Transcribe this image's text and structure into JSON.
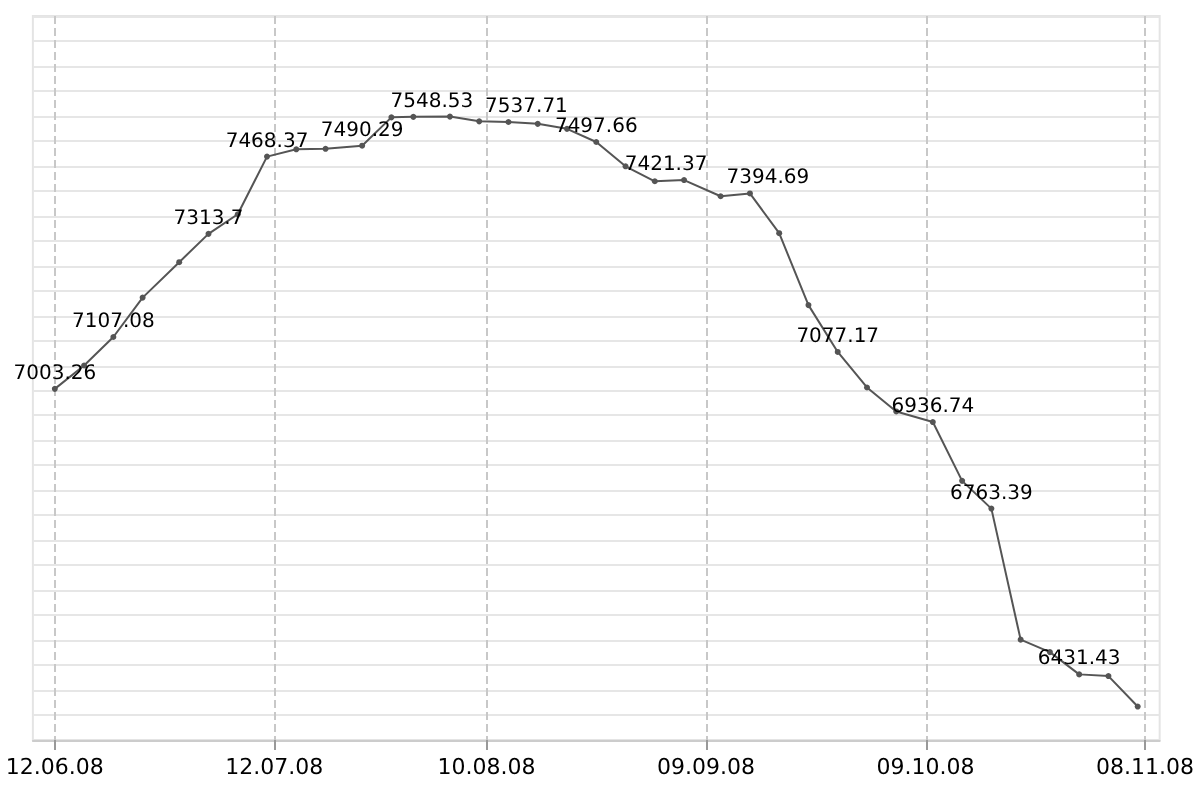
{
  "chart_data": {
    "type": "line",
    "x": [
      "2008-06-12",
      "2008-06-16",
      "2008-06-20",
      "2008-06-24",
      "2008-06-29",
      "2008-07-03",
      "2008-07-07",
      "2008-07-11",
      "2008-07-15",
      "2008-07-19",
      "2008-07-24",
      "2008-07-28",
      "2008-07-31",
      "2008-08-05",
      "2008-08-09",
      "2008-08-13",
      "2008-08-17",
      "2008-08-21",
      "2008-08-25",
      "2008-08-29",
      "2008-09-02",
      "2008-09-06",
      "2008-09-11",
      "2008-09-15",
      "2008-09-19",
      "2008-09-23",
      "2008-09-27",
      "2008-10-01",
      "2008-10-05",
      "2008-10-10",
      "2008-10-14",
      "2008-10-18",
      "2008-10-22",
      "2008-10-26",
      "2008-10-30",
      "2008-11-03",
      "2008-11-07"
    ],
    "series": [
      {
        "color": "#555555",
        "values": [
          7003.26,
          7050,
          7107.08,
          7186,
          7257,
          7313.7,
          7353,
          7468.37,
          7483,
          7484,
          7490.29,
          7547,
          7548,
          7548.53,
          7539,
          7537.71,
          7534,
          7524,
          7497.66,
          7449,
          7419,
          7421.37,
          7389,
          7394.69,
          7315,
          7171,
          7077.17,
          7006,
          6958,
          6936.74,
          6819,
          6763.39,
          6501,
          6476,
          6431.43,
          6428,
          6367
        ],
        "value_labels": [
          "7003.26",
          null,
          "7107.08",
          null,
          null,
          "7313.7",
          null,
          "7468.37",
          null,
          null,
          "7490.29",
          null,
          null,
          "7548.53",
          null,
          "7537.71",
          null,
          null,
          "7497.66",
          null,
          null,
          "7421.37",
          null,
          "7394.69",
          null,
          null,
          "7077.17",
          null,
          null,
          "6936.74",
          null,
          "6763.39",
          null,
          null,
          "6431.43",
          null,
          null
        ]
      }
    ],
    "xlim": [
      "2008-06-09",
      "2008-11-10"
    ],
    "xticks": [
      {
        "value": "2008-06-12",
        "label": "12.06.08"
      },
      {
        "value": "2008-07-12",
        "label": "12.07.08"
      },
      {
        "value": "2008-08-10",
        "label": "10.08.08"
      },
      {
        "value": "2008-09-09",
        "label": "09.09.08"
      },
      {
        "value": "2008-10-09",
        "label": "09.10.08"
      },
      {
        "value": "2008-11-08",
        "label": "08.11.08"
      }
    ],
    "ylim": [
      6300,
      7750
    ],
    "yticks": [
      {
        "value": 6300,
        "label": null
      },
      {
        "value": 6350,
        "label": null
      },
      {
        "value": 6400,
        "label": null
      },
      {
        "value": 6450,
        "label": null
      },
      {
        "value": 6500,
        "label": null
      },
      {
        "value": 6550,
        "label": null
      },
      {
        "value": 6600,
        "label": null
      },
      {
        "value": 6650,
        "label": null
      },
      {
        "value": 6700,
        "label": null
      },
      {
        "value": 6750,
        "label": null
      },
      {
        "value": 6800,
        "label": null
      },
      {
        "value": 6850,
        "label": null
      },
      {
        "value": 6900,
        "label": null
      },
      {
        "value": 6950,
        "label": null
      },
      {
        "value": 7000,
        "label": null
      },
      {
        "value": 7050,
        "label": null
      },
      {
        "value": 7100,
        "label": null
      },
      {
        "value": 7150,
        "label": null
      },
      {
        "value": 7200,
        "label": null
      },
      {
        "value": 7250,
        "label": null
      },
      {
        "value": 7300,
        "label": null
      },
      {
        "value": 7350,
        "label": null
      },
      {
        "value": 7400,
        "label": null
      },
      {
        "value": 7450,
        "label": null
      },
      {
        "value": 7500,
        "label": null
      },
      {
        "value": 7550,
        "label": null
      },
      {
        "value": 7600,
        "label": null
      },
      {
        "value": 7650,
        "label": null
      },
      {
        "value": 7700,
        "label": null
      },
      {
        "value": 7750,
        "label": null
      }
    ],
    "tick_labels": "x",
    "grid": true,
    "marker": "circle",
    "line_style": "solid"
  }
}
